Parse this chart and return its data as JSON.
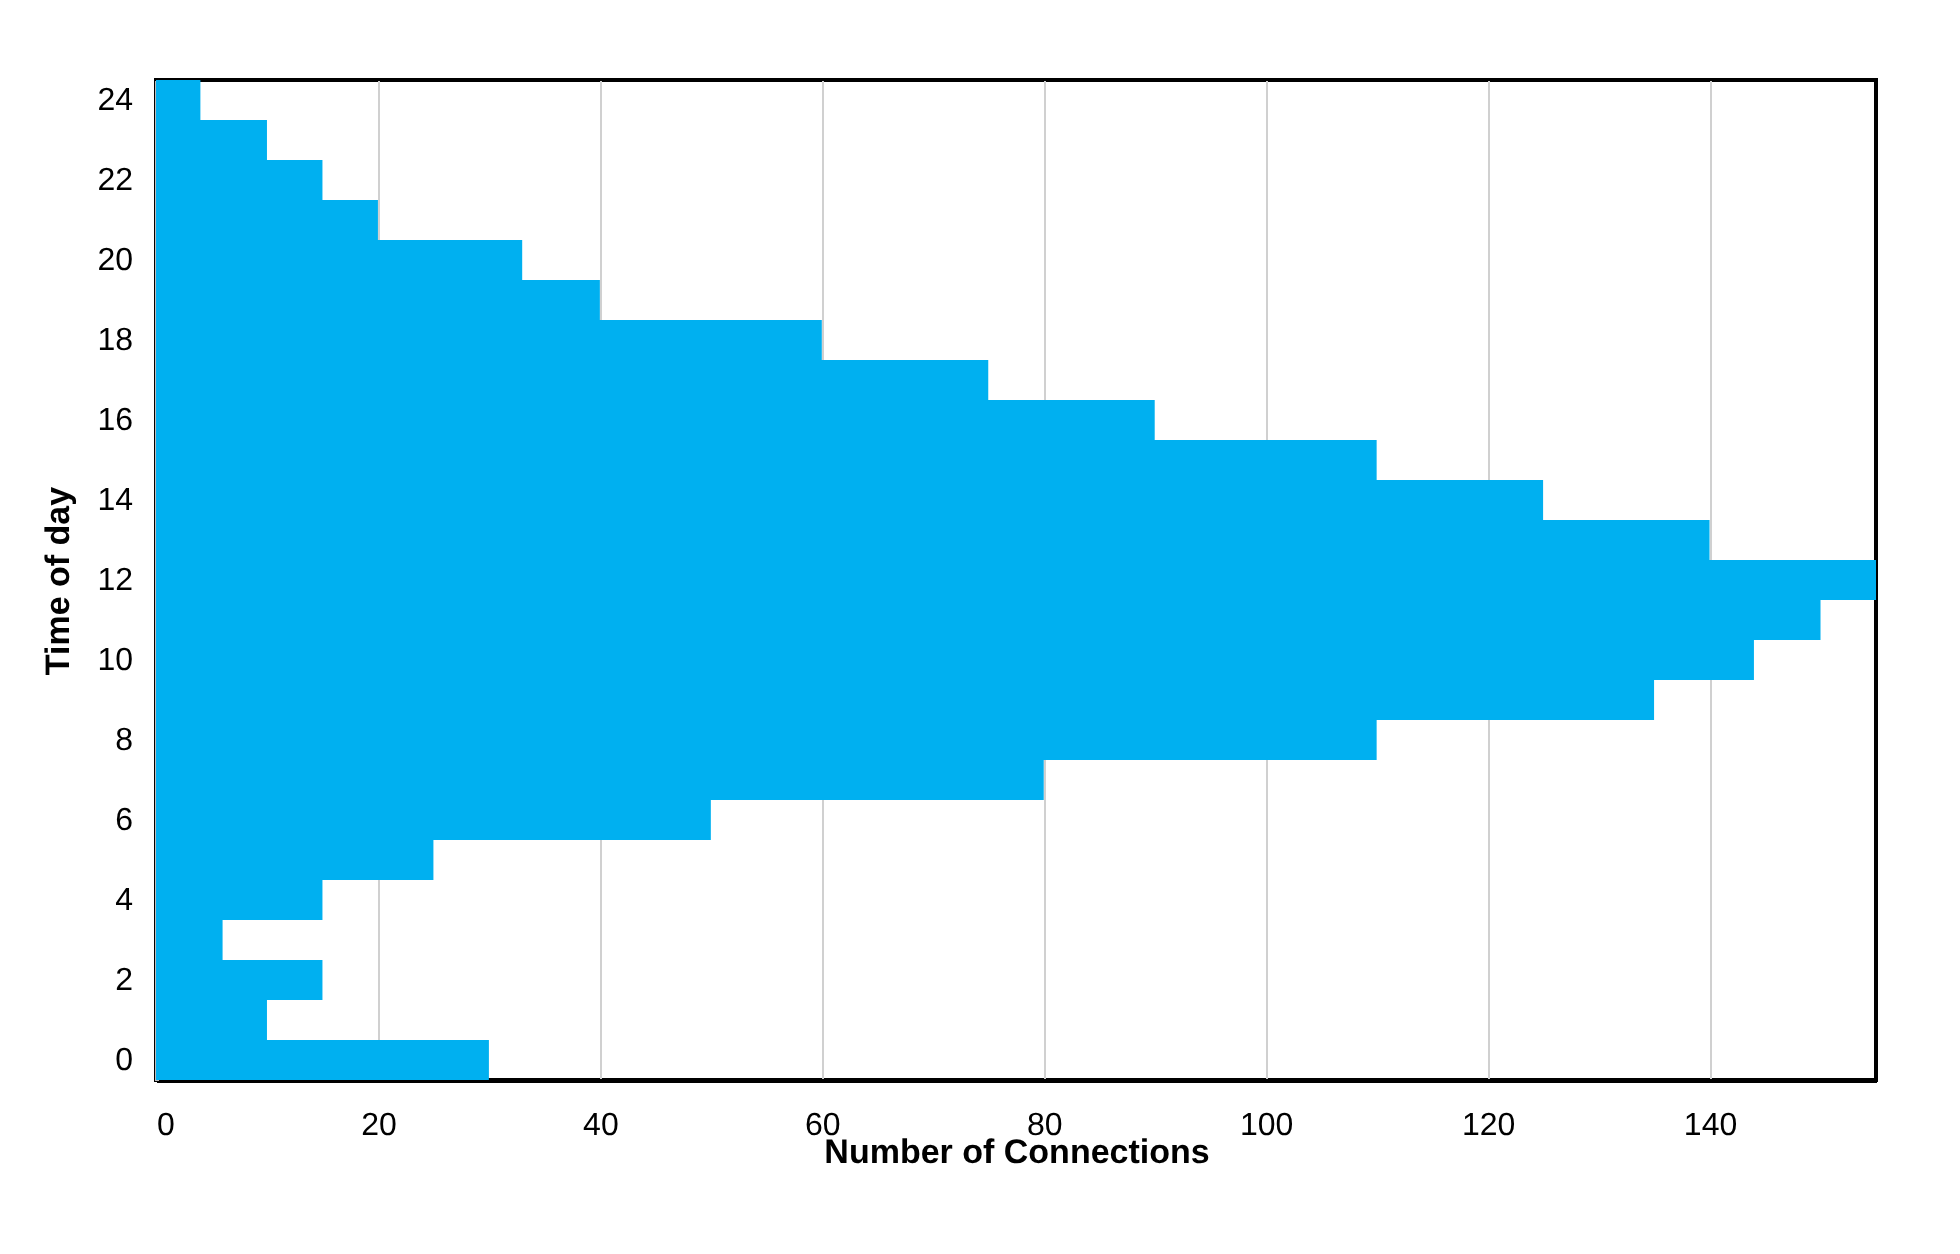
{
  "chart_data": {
    "type": "bar",
    "orientation": "horizontal",
    "xlabel": "Number of Connections",
    "ylabel": "Time of day",
    "categories": [
      "24",
      null,
      "22",
      null,
      "20",
      null,
      "18",
      null,
      "16",
      null,
      "14",
      null,
      "12",
      null,
      "10",
      null,
      "8",
      null,
      "6",
      null,
      "4",
      null,
      "2",
      null,
      "0"
    ],
    "values": [
      4,
      10,
      15,
      20,
      33,
      40,
      60,
      75,
      90,
      110,
      125,
      140,
      155,
      150,
      144,
      135,
      110,
      80,
      50,
      25,
      15,
      6,
      15,
      10,
      30
    ],
    "color": "#00b0f0",
    "xlim": [
      0,
      155
    ],
    "xticks": [
      0,
      20,
      40,
      60,
      80,
      100,
      120,
      140
    ],
    "grid": "x"
  }
}
